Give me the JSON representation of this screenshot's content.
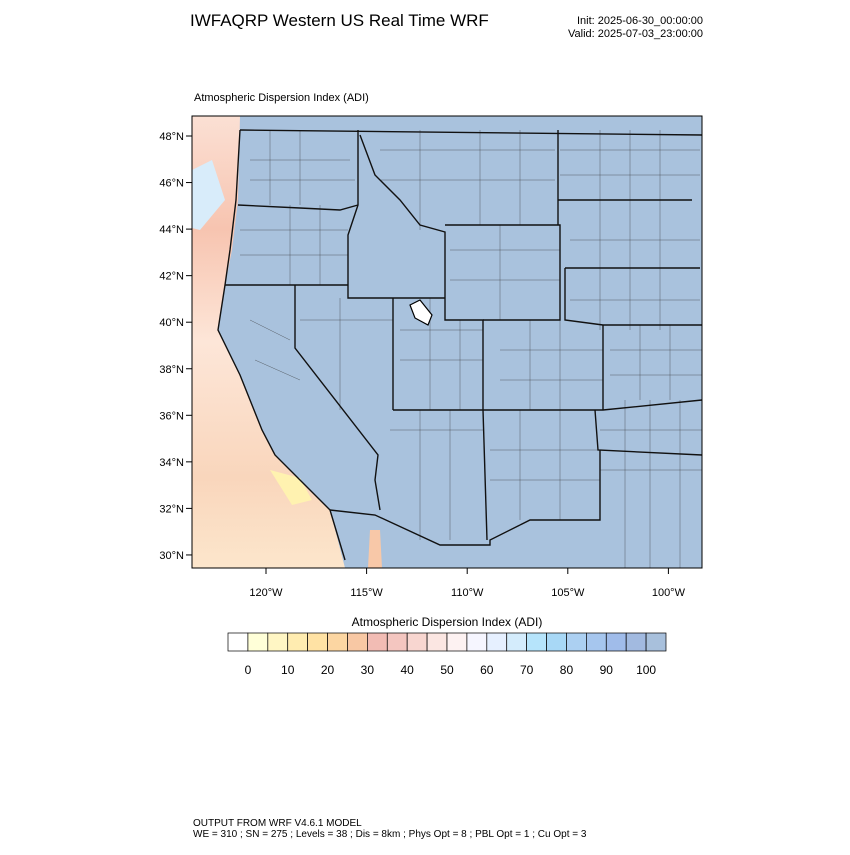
{
  "header": {
    "title": "IWFAQRP Western US Real Time WRF",
    "init": "Init: 2025-06-30_00:00:00",
    "valid": "Valid: 2025-07-03_23:00:00"
  },
  "map": {
    "title": "Atmospheric Dispersion Index   (ADI)",
    "lat_labels": [
      "48°N",
      "46°N",
      "44°N",
      "42°N",
      "40°N",
      "38°N",
      "36°N",
      "34°N",
      "32°N",
      "30°N"
    ],
    "lon_labels": [
      "120°W",
      "115°W",
      "110°W",
      "105°W",
      "100°W"
    ]
  },
  "colorbar": {
    "title": "Atmospheric Dispersion Index  (ADI)",
    "colors": [
      "#ffffff",
      "#ffffd8",
      "#fff6c4",
      "#ffecb0",
      "#ffe2a4",
      "#fcd6a2",
      "#f8c8a4",
      "#f2bcb4",
      "#f4c6c0",
      "#f8d6d0",
      "#fbe6e2",
      "#fdf2f2",
      "#f6f6ff",
      "#e6f0ff",
      "#d4ecfc",
      "#b6e4fb",
      "#a8d8f6",
      "#acd0f2",
      "#a6c6ee",
      "#a0bcea",
      "#a2bae0",
      "#a8c0dc"
    ],
    "labels": [
      "0",
      "10",
      "20",
      "30",
      "40",
      "50",
      "60",
      "70",
      "80",
      "90",
      "100"
    ]
  },
  "footer": {
    "line1": "OUTPUT FROM WRF V4.6.1 MODEL",
    "line2": "WE = 310 ; SN = 275 ; Levels = 38 ; Dis = 8km ; Phys Opt = 8 ; PBL Opt = 1 ; Cu Opt = 3"
  }
}
